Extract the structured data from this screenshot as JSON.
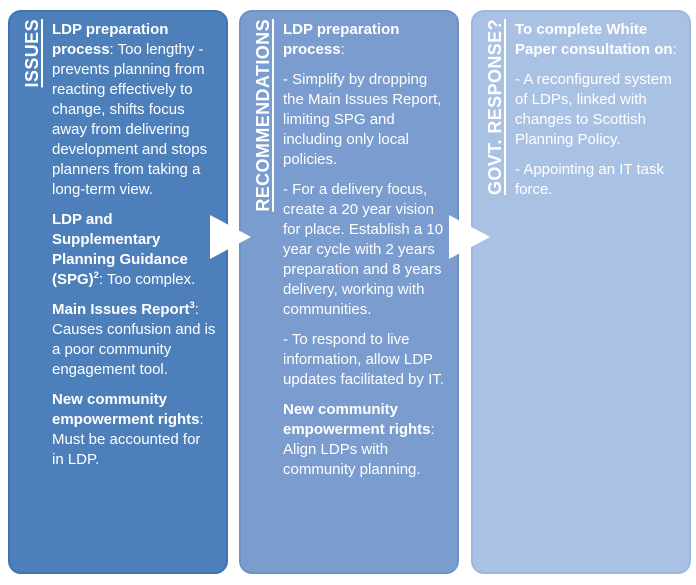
{
  "text_color": "#ffffff",
  "arrow": {
    "color": "#ffffff",
    "direction": "right"
  },
  "panels": [
    {
      "label": "ISSUES",
      "fill": "#4d80bb",
      "border": "#4173ae",
      "paragraphs": [
        [
          {
            "text": "LDP preparation process",
            "bold": true
          },
          {
            "text": ": Too lengthy - prevents planning from reacting effectively to change, shifts focus away from delivering development and stops planners from taking a long-term view.",
            "bold": false
          }
        ],
        [
          {
            "text": "LDP and Supplementary Planning Guidance (SPG)",
            "bold": true
          },
          {
            "text": "2",
            "bold": true,
            "sup": true
          },
          {
            "text": ": Too complex.",
            "bold": false
          }
        ],
        [
          {
            "text": "Main Issues Report",
            "bold": true
          },
          {
            "text": "3",
            "bold": true,
            "sup": true
          },
          {
            "text": ": Causes confusion and is a poor community engagement tool.",
            "bold": false
          }
        ],
        [
          {
            "text": "New community empowerment rights",
            "bold": true
          },
          {
            "text": ": Must be accounted for in LDP.",
            "bold": false
          }
        ]
      ]
    },
    {
      "label": "RECOMMENDATIONS",
      "fill": "#7b9cce",
      "border": "#6d92c6",
      "paragraphs": [
        [
          {
            "text": "LDP preparation process",
            "bold": true
          },
          {
            "text": ":",
            "bold": false
          }
        ],
        [
          {
            "text": "- Simplify by dropping the Main Issues Report, limiting SPG and including only local policies.",
            "bold": false
          }
        ],
        [
          {
            "text": "- For a delivery focus, create a 20 year vision for place. Establish a 10 year cycle with 2 years preparation and 8 years delivery, working with communities.",
            "bold": false
          }
        ],
        [
          {
            "text": "- To respond to live information, allow LDP updates facilitated by IT.",
            "bold": false
          }
        ],
        [
          {
            "text": "New community empowerment rights",
            "bold": true
          },
          {
            "text": ": Align LDPs with community planning.",
            "bold": false
          }
        ]
      ]
    },
    {
      "label": "GOVT. RESPONSE?",
      "fill": "#a9c2e4",
      "border": "#9cb8de",
      "paragraphs": [
        [
          {
            "text": "To complete White Paper consultation on",
            "bold": true
          },
          {
            "text": ":",
            "bold": false
          }
        ],
        [
          {
            "text": "- A reconfigured system of LDPs, linked with changes to Scottish Planning Policy.",
            "bold": false
          }
        ],
        [
          {
            "text": "- Appointing an IT task force.",
            "bold": false
          }
        ]
      ]
    }
  ]
}
